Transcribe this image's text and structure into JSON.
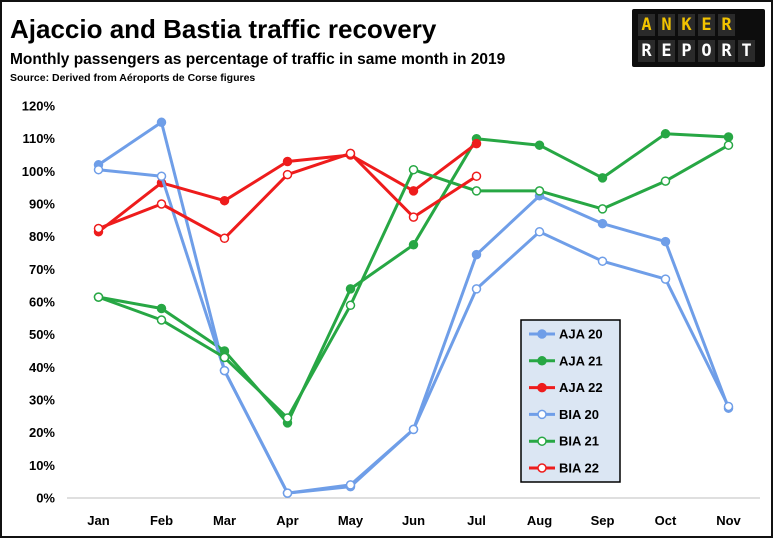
{
  "brand": {
    "logo_top": "ANKER",
    "logo_bottom": "REPORT",
    "logo_bg": "#0d0d0d",
    "logo_top_color": "#f2c300",
    "logo_bottom_color": "#ffffff"
  },
  "chart_data": {
    "type": "line",
    "title": "Ajaccio and Bastia traffic recovery",
    "subtitle": "Monthly passengers as percentage of traffic in same month in 2019",
    "source": "Source: Derived from Aéroports de Corse figures",
    "categories": [
      "Jan",
      "Feb",
      "Mar",
      "Apr",
      "May",
      "Jun",
      "Jul",
      "Aug",
      "Sep",
      "Oct",
      "Nov"
    ],
    "ylim": [
      0,
      120
    ],
    "yticks": [
      0,
      10,
      20,
      30,
      40,
      50,
      60,
      70,
      80,
      90,
      100,
      110,
      120
    ],
    "ytick_labels": [
      "0%",
      "10%",
      "20%",
      "30%",
      "40%",
      "50%",
      "60%",
      "70%",
      "80%",
      "90%",
      "100%",
      "110%",
      "120%"
    ],
    "grid": false,
    "legend_placement": "lower-center",
    "series": [
      {
        "name": "AJA 20",
        "color": "#6f9ee8",
        "marker": "filled",
        "values": [
          102,
          115,
          39,
          1.5,
          3.5,
          21,
          74.5,
          92.5,
          84,
          78.5,
          27.5
        ]
      },
      {
        "name": "AJA 21",
        "color": "#27a744",
        "marker": "filled",
        "values": [
          61.5,
          58,
          45,
          23,
          64,
          77.5,
          110,
          108,
          98,
          111.5,
          110.5
        ]
      },
      {
        "name": "AJA 22",
        "color": "#ee1c1c",
        "marker": "filled",
        "values": [
          81.5,
          96.5,
          91,
          103,
          105,
          94,
          108.5,
          null,
          null,
          null,
          null
        ]
      },
      {
        "name": "BIA 20",
        "color": "#6f9ee8",
        "marker": "hollow",
        "values": [
          100.5,
          98.5,
          39,
          1.5,
          4,
          21,
          64,
          81.5,
          72.5,
          67,
          28
        ]
      },
      {
        "name": "BIA 21",
        "color": "#27a744",
        "marker": "hollow",
        "values": [
          61.5,
          54.5,
          43,
          24.5,
          59,
          100.5,
          94,
          94,
          88.5,
          97,
          108
        ]
      },
      {
        "name": "BIA 22",
        "color": "#ee1c1c",
        "marker": "hollow",
        "values": [
          82.5,
          90,
          79.5,
          99,
          105.5,
          86,
          98.5,
          null,
          null,
          null,
          null
        ]
      }
    ]
  }
}
